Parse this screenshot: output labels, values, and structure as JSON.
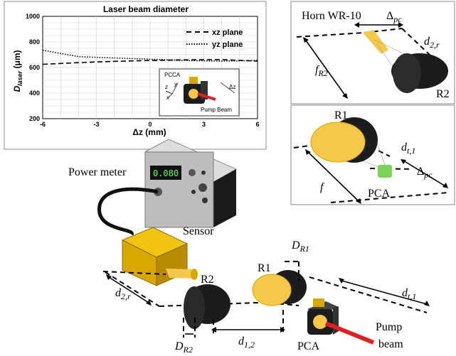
{
  "chart_data": {
    "type": "line",
    "title": "Laser beam diameter",
    "ylabel_main": "D",
    "ylabel_sub": "laser",
    "ylabel_unit": " (μm)",
    "xlabel": "Δz (mm)",
    "xlim": [
      -6,
      6
    ],
    "ylim": [
      200,
      1000
    ],
    "xticks": [
      "-6",
      "-3",
      "0",
      "3",
      "6"
    ],
    "yticks": [
      "200",
      "400",
      "600",
      "800",
      "1000"
    ],
    "grid": true,
    "legend_position": "top-right",
    "series": [
      {
        "name": "xz plane",
        "style": "dashed",
        "x": [
          -6,
          -4,
          -2,
          0,
          2,
          4,
          6
        ],
        "y": [
          625,
          638,
          648,
          655,
          660,
          662,
          650
        ]
      },
      {
        "name": "yz plane",
        "style": "dotted",
        "x": [
          -6,
          -4,
          -2,
          0,
          2,
          4,
          6
        ],
        "y": [
          735,
          685,
          675,
          665,
          655,
          650,
          655
        ]
      }
    ],
    "inset": {
      "pcca": "PCCA",
      "y": "y",
      "z": "z",
      "x": "x",
      "dz": "Δz",
      "pump": "Pump Beam"
    }
  },
  "labels": {
    "horn": "Horn WR-10",
    "delta_pc": "Δ",
    "pc_sub": "pc",
    "d2r_d": "d",
    "d2r_sub": "2,r",
    "fR2_f": "f",
    "fR2_sub": "R2",
    "R2": "R2",
    "R1": "R1",
    "dt1_d": "d",
    "dt1_sub": "t,1",
    "f": "f",
    "PCA": "PCA",
    "power_meter": "Power meter",
    "meter_display": "0.080",
    "sensor": "Sensor",
    "DR1_D": "D",
    "DR1_sub": "R1",
    "DR2_D": "D",
    "DR2_sub": "R2",
    "d12_d": "d",
    "d12_sub": "1,2",
    "pump_beam_1": "Pump",
    "pump_beam_2": "beam"
  },
  "colors": {
    "lens_yellow": "#f5c84c",
    "lens_black": "#1c1c1c",
    "sensor_yellow": "#d9a800",
    "pca_green": "#7dd35a",
    "laser_red": "#e02020"
  }
}
